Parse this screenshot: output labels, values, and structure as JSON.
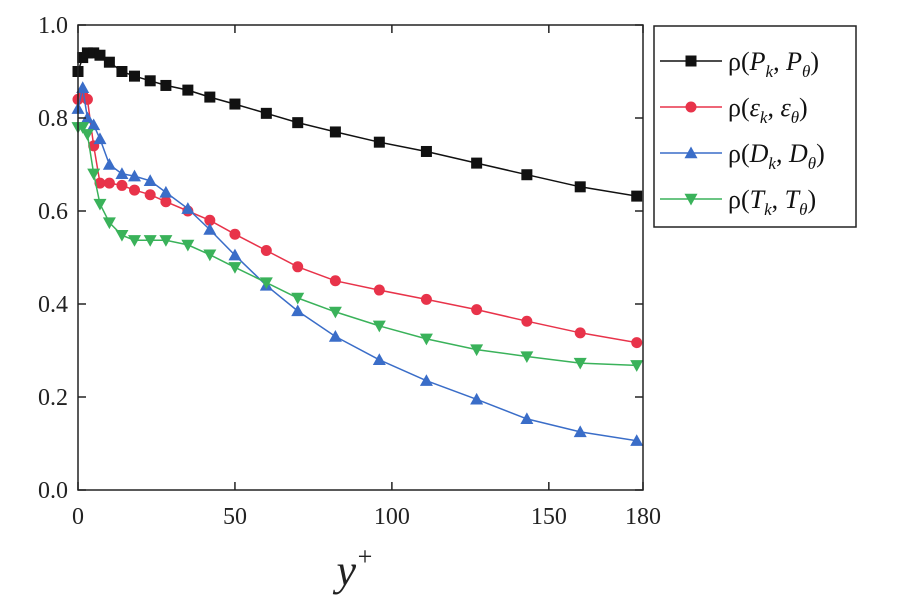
{
  "chart_data": {
    "type": "line",
    "xlabel": "y",
    "xlabel_superscript": "+",
    "ylabel": "",
    "xlim": [
      0,
      180
    ],
    "ylim": [
      0,
      1.0
    ],
    "xticks": [
      0,
      50,
      100,
      150,
      180
    ],
    "xtick_labels": [
      "0",
      "50",
      "100",
      "150",
      "180"
    ],
    "yticks": [
      0,
      0.2,
      0.4,
      0.6,
      0.8,
      1.0
    ],
    "ytick_labels": [
      "0.0",
      "0.2",
      "0.4",
      "0.6",
      "0.8",
      "1.0"
    ],
    "grid": false,
    "legend_position": "top-right",
    "series": [
      {
        "name": "ρ(P_k, P_θ)",
        "label_parts": [
          "ρ(",
          "P",
          "k",
          ", ",
          "P",
          "θ",
          ")"
        ],
        "color": "#111111",
        "marker": "square",
        "x": [
          0,
          1.5,
          3,
          5,
          7,
          10,
          14,
          18,
          23,
          28,
          35,
          42,
          50,
          60,
          70,
          82,
          96,
          111,
          127,
          143,
          160,
          178
        ],
        "y": [
          0.9,
          0.93,
          0.94,
          0.94,
          0.935,
          0.92,
          0.9,
          0.89,
          0.88,
          0.87,
          0.86,
          0.845,
          0.83,
          0.81,
          0.79,
          0.77,
          0.748,
          0.728,
          0.703,
          0.678,
          0.652,
          0.632
        ]
      },
      {
        "name": "ρ(ε_k, ε_θ)",
        "label_parts": [
          "ρ(",
          "ε",
          "k",
          ", ",
          "ε",
          "θ",
          ")"
        ],
        "color": "#e8334a",
        "marker": "circle",
        "x": [
          0,
          1.5,
          3,
          5,
          7,
          10,
          14,
          18,
          23,
          28,
          35,
          42,
          50,
          60,
          70,
          82,
          96,
          111,
          127,
          143,
          160,
          178
        ],
        "y": [
          0.84,
          0.85,
          0.84,
          0.74,
          0.66,
          0.66,
          0.655,
          0.645,
          0.635,
          0.62,
          0.6,
          0.58,
          0.55,
          0.515,
          0.48,
          0.45,
          0.43,
          0.41,
          0.388,
          0.363,
          0.338,
          0.317
        ]
      },
      {
        "name": "ρ(D_k, D_θ)",
        "label_parts": [
          "ρ(",
          "D",
          "k",
          ", ",
          "D",
          "θ",
          ")"
        ],
        "color": "#3a6dc8",
        "marker": "triangle-up",
        "x": [
          0,
          1.5,
          3,
          5,
          7,
          10,
          14,
          18,
          23,
          28,
          35,
          42,
          50,
          60,
          70,
          82,
          96,
          111,
          127,
          143,
          160,
          178
        ],
        "y": [
          0.82,
          0.865,
          0.8,
          0.785,
          0.755,
          0.7,
          0.68,
          0.675,
          0.665,
          0.64,
          0.605,
          0.56,
          0.505,
          0.44,
          0.385,
          0.33,
          0.28,
          0.235,
          0.195,
          0.153,
          0.125,
          0.106
        ]
      },
      {
        "name": "ρ(T_k, T_θ)",
        "label_parts": [
          "ρ(",
          "T",
          "k",
          ", ",
          "T",
          "θ",
          ")"
        ],
        "color": "#3ab25a",
        "marker": "triangle-down",
        "x": [
          0,
          1.5,
          3,
          5,
          7,
          10,
          14,
          18,
          23,
          28,
          35,
          42,
          50,
          60,
          70,
          82,
          96,
          111,
          127,
          143,
          160,
          178
        ],
        "y": [
          0.78,
          0.78,
          0.765,
          0.68,
          0.615,
          0.575,
          0.548,
          0.537,
          0.537,
          0.537,
          0.527,
          0.506,
          0.479,
          0.446,
          0.413,
          0.383,
          0.353,
          0.325,
          0.302,
          0.287,
          0.273,
          0.268
        ]
      }
    ]
  }
}
